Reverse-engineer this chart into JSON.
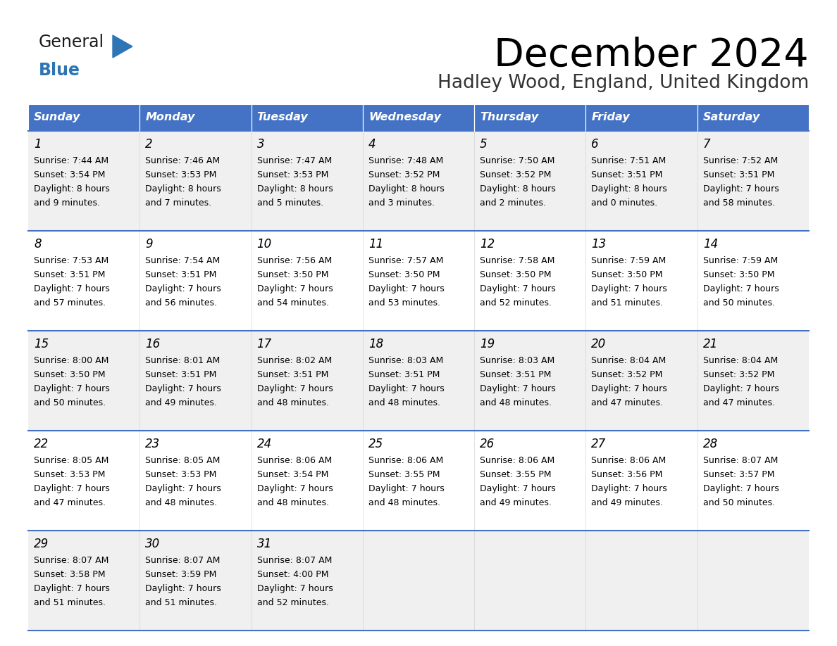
{
  "title": "December 2024",
  "subtitle": "Hadley Wood, England, United Kingdom",
  "days_of_week": [
    "Sunday",
    "Monday",
    "Tuesday",
    "Wednesday",
    "Thursday",
    "Friday",
    "Saturday"
  ],
  "header_bg": "#4472C4",
  "header_text_color": "#FFFFFF",
  "row_bg_odd": "#F0F0F0",
  "row_bg_even": "#FFFFFF",
  "cell_text_color": "#000000",
  "grid_line_color": "#4472C4",
  "title_color": "#000000",
  "subtitle_color": "#333333",
  "logo_general_color": "#1a1a1a",
  "logo_blue_color": "#2E75B6",
  "weeks": [
    [
      {
        "day": 1,
        "sunrise": "7:44 AM",
        "sunset": "3:54 PM",
        "daylight": "8 hours",
        "daylight2": "and 9 minutes."
      },
      {
        "day": 2,
        "sunrise": "7:46 AM",
        "sunset": "3:53 PM",
        "daylight": "8 hours",
        "daylight2": "and 7 minutes."
      },
      {
        "day": 3,
        "sunrise": "7:47 AM",
        "sunset": "3:53 PM",
        "daylight": "8 hours",
        "daylight2": "and 5 minutes."
      },
      {
        "day": 4,
        "sunrise": "7:48 AM",
        "sunset": "3:52 PM",
        "daylight": "8 hours",
        "daylight2": "and 3 minutes."
      },
      {
        "day": 5,
        "sunrise": "7:50 AM",
        "sunset": "3:52 PM",
        "daylight": "8 hours",
        "daylight2": "and 2 minutes."
      },
      {
        "day": 6,
        "sunrise": "7:51 AM",
        "sunset": "3:51 PM",
        "daylight": "8 hours",
        "daylight2": "and 0 minutes."
      },
      {
        "day": 7,
        "sunrise": "7:52 AM",
        "sunset": "3:51 PM",
        "daylight": "7 hours",
        "daylight2": "and 58 minutes."
      }
    ],
    [
      {
        "day": 8,
        "sunrise": "7:53 AM",
        "sunset": "3:51 PM",
        "daylight": "7 hours",
        "daylight2": "and 57 minutes."
      },
      {
        "day": 9,
        "sunrise": "7:54 AM",
        "sunset": "3:51 PM",
        "daylight": "7 hours",
        "daylight2": "and 56 minutes."
      },
      {
        "day": 10,
        "sunrise": "7:56 AM",
        "sunset": "3:50 PM",
        "daylight": "7 hours",
        "daylight2": "and 54 minutes."
      },
      {
        "day": 11,
        "sunrise": "7:57 AM",
        "sunset": "3:50 PM",
        "daylight": "7 hours",
        "daylight2": "and 53 minutes."
      },
      {
        "day": 12,
        "sunrise": "7:58 AM",
        "sunset": "3:50 PM",
        "daylight": "7 hours",
        "daylight2": "and 52 minutes."
      },
      {
        "day": 13,
        "sunrise": "7:59 AM",
        "sunset": "3:50 PM",
        "daylight": "7 hours",
        "daylight2": "and 51 minutes."
      },
      {
        "day": 14,
        "sunrise": "7:59 AM",
        "sunset": "3:50 PM",
        "daylight": "7 hours",
        "daylight2": "and 50 minutes."
      }
    ],
    [
      {
        "day": 15,
        "sunrise": "8:00 AM",
        "sunset": "3:50 PM",
        "daylight": "7 hours",
        "daylight2": "and 50 minutes."
      },
      {
        "day": 16,
        "sunrise": "8:01 AM",
        "sunset": "3:51 PM",
        "daylight": "7 hours",
        "daylight2": "and 49 minutes."
      },
      {
        "day": 17,
        "sunrise": "8:02 AM",
        "sunset": "3:51 PM",
        "daylight": "7 hours",
        "daylight2": "and 48 minutes."
      },
      {
        "day": 18,
        "sunrise": "8:03 AM",
        "sunset": "3:51 PM",
        "daylight": "7 hours",
        "daylight2": "and 48 minutes."
      },
      {
        "day": 19,
        "sunrise": "8:03 AM",
        "sunset": "3:51 PM",
        "daylight": "7 hours",
        "daylight2": "and 48 minutes."
      },
      {
        "day": 20,
        "sunrise": "8:04 AM",
        "sunset": "3:52 PM",
        "daylight": "7 hours",
        "daylight2": "and 47 minutes."
      },
      {
        "day": 21,
        "sunrise": "8:04 AM",
        "sunset": "3:52 PM",
        "daylight": "7 hours",
        "daylight2": "and 47 minutes."
      }
    ],
    [
      {
        "day": 22,
        "sunrise": "8:05 AM",
        "sunset": "3:53 PM",
        "daylight": "7 hours",
        "daylight2": "and 47 minutes."
      },
      {
        "day": 23,
        "sunrise": "8:05 AM",
        "sunset": "3:53 PM",
        "daylight": "7 hours",
        "daylight2": "and 48 minutes."
      },
      {
        "day": 24,
        "sunrise": "8:06 AM",
        "sunset": "3:54 PM",
        "daylight": "7 hours",
        "daylight2": "and 48 minutes."
      },
      {
        "day": 25,
        "sunrise": "8:06 AM",
        "sunset": "3:55 PM",
        "daylight": "7 hours",
        "daylight2": "and 48 minutes."
      },
      {
        "day": 26,
        "sunrise": "8:06 AM",
        "sunset": "3:55 PM",
        "daylight": "7 hours",
        "daylight2": "and 49 minutes."
      },
      {
        "day": 27,
        "sunrise": "8:06 AM",
        "sunset": "3:56 PM",
        "daylight": "7 hours",
        "daylight2": "and 49 minutes."
      },
      {
        "day": 28,
        "sunrise": "8:07 AM",
        "sunset": "3:57 PM",
        "daylight": "7 hours",
        "daylight2": "and 50 minutes."
      }
    ],
    [
      {
        "day": 29,
        "sunrise": "8:07 AM",
        "sunset": "3:58 PM",
        "daylight": "7 hours",
        "daylight2": "and 51 minutes."
      },
      {
        "day": 30,
        "sunrise": "8:07 AM",
        "sunset": "3:59 PM",
        "daylight": "7 hours",
        "daylight2": "and 51 minutes."
      },
      {
        "day": 31,
        "sunrise": "8:07 AM",
        "sunset": "4:00 PM",
        "daylight": "7 hours",
        "daylight2": "and 52 minutes."
      },
      null,
      null,
      null,
      null
    ]
  ]
}
